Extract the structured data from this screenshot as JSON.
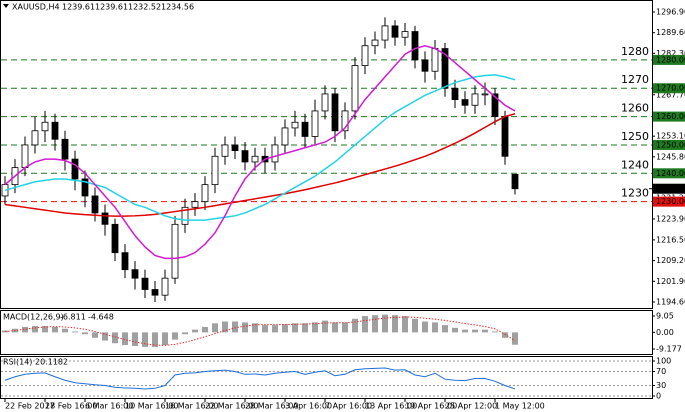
{
  "chart_data": [
    {
      "type": "candlestick",
      "title": "XAUUSD,H4",
      "categories": [
        "22 Feb 2017",
        null,
        null,
        null,
        "28 Feb 16:00",
        null,
        null,
        null,
        "6 Mar 16:00",
        null,
        null,
        null,
        "10 Mar 16:00",
        null,
        null,
        null,
        "16 Mar 16:00",
        null,
        null,
        null,
        "22 Mar 16:00",
        null,
        null,
        null,
        "28 Mar 16:00",
        null,
        null,
        null,
        "3 Apr 16:00",
        null,
        null,
        null,
        "7 Apr 16:00",
        null,
        null,
        null,
        "13 Apr 16:00",
        null,
        null,
        null,
        "19 Apr 16:00",
        null,
        null,
        null,
        "25 Apr 12:00",
        null,
        null,
        null,
        null,
        "1 May 12:00",
        null,
        null
      ],
      "open": [
        1232,
        1236,
        1242,
        1250,
        1255,
        1258,
        1252,
        1245,
        1238,
        1232,
        1226,
        1222,
        1212,
        1206,
        1203,
        1199,
        1197,
        1203,
        1222,
        1228,
        1230,
        1236,
        1246,
        1250,
        1248,
        1244,
        1246,
        1244,
        1250,
        1256,
        1258,
        1253,
        1262,
        1268,
        1255,
        1262,
        1278,
        1285,
        1287,
        1292,
        1288,
        1290,
        1280,
        1276,
        1284,
        1270,
        1266,
        1264,
        1268,
        1268,
        1260,
        1239.61
      ],
      "high": [
        1239,
        1245,
        1253,
        1260,
        1262,
        1261,
        1255,
        1248,
        1241,
        1235,
        1229,
        1224,
        1215,
        1209,
        1206,
        1202,
        1206,
        1225,
        1231,
        1233,
        1239,
        1249,
        1253,
        1253,
        1251,
        1249,
        1249,
        1253,
        1259,
        1262,
        1261,
        1266,
        1271,
        1270,
        1265,
        1281,
        1288,
        1290,
        1295,
        1294,
        1293,
        1292,
        1283,
        1287,
        1286,
        1273,
        1269,
        1271,
        1272,
        1270,
        1262,
        1239.61
      ],
      "low": [
        1229,
        1233,
        1239,
        1247,
        1251,
        1248,
        1241,
        1234,
        1228,
        1223,
        1218,
        1209,
        1203,
        1199,
        1196,
        1194.6,
        1195,
        1201,
        1219,
        1225,
        1227,
        1233,
        1243,
        1245,
        1241,
        1241,
        1240,
        1241,
        1247,
        1253,
        1249,
        1250,
        1259,
        1251,
        1252,
        1259,
        1275,
        1282,
        1284,
        1285,
        1285,
        1277,
        1272,
        1273,
        1267,
        1263,
        1261,
        1261,
        1264,
        1257,
        1243,
        1232.52
      ],
      "close": [
        1236,
        1242,
        1250,
        1255,
        1258,
        1252,
        1245,
        1238,
        1232,
        1226,
        1222,
        1212,
        1206,
        1203,
        1199,
        1197,
        1203,
        1222,
        1228,
        1230,
        1236,
        1246,
        1250,
        1248,
        1244,
        1246,
        1244,
        1250,
        1256,
        1258,
        1253,
        1262,
        1268,
        1255,
        1262,
        1278,
        1285,
        1287,
        1292,
        1288,
        1290,
        1280,
        1276,
        1284,
        1270,
        1266,
        1264,
        1268,
        1268,
        1260,
        1246,
        1234.56
      ],
      "up_color": "#ffffff",
      "down_color": "#000000",
      "series": [
        {
          "color": "#e00000",
          "values": [
            1229,
            1228.5,
            1228,
            1227.5,
            1227,
            1226.5,
            1226,
            1225.7,
            1225.4,
            1225.2,
            1225,
            1224.9,
            1224.9,
            1225,
            1225.2,
            1225.5,
            1226,
            1226.5,
            1227,
            1227.5,
            1228,
            1228.6,
            1229.2,
            1229.8,
            1230.4,
            1231,
            1231.6,
            1232.2,
            1232.8,
            1233.5,
            1234.2,
            1235,
            1235.8,
            1236.6,
            1237.5,
            1238.5,
            1239.5,
            1240.5,
            1241.5,
            1242.5,
            1243.6,
            1244.8,
            1246,
            1247.4,
            1249,
            1250.6,
            1252.3,
            1254.2,
            1256.2,
            1258.2,
            1260,
            1261
          ]
        },
        {
          "color": "#22d3e6",
          "values": [
            1234,
            1235,
            1236,
            1237,
            1237.5,
            1238,
            1238,
            1237.5,
            1237,
            1236,
            1235,
            1233,
            1231,
            1229,
            1228,
            1226.5,
            1225,
            1224,
            1223.5,
            1223.5,
            1223.5,
            1224,
            1224.5,
            1225,
            1226,
            1227.5,
            1229,
            1231,
            1233,
            1235,
            1237,
            1239,
            1241.5,
            1244,
            1247,
            1250,
            1253,
            1256,
            1259,
            1261.5,
            1263.5,
            1265.5,
            1267.5,
            1269,
            1270.5,
            1272,
            1273,
            1274,
            1274.5,
            1274.7,
            1274,
            1273
          ]
        },
        {
          "color": "#d41ad4",
          "values": [
            1236,
            1239,
            1242,
            1244,
            1245,
            1245,
            1244.5,
            1243,
            1240,
            1236,
            1232,
            1228,
            1223,
            1218,
            1214,
            1211,
            1210,
            1210,
            1210.5,
            1212,
            1215,
            1219,
            1225,
            1232,
            1238,
            1242,
            1245,
            1246,
            1247,
            1248,
            1249,
            1250,
            1251,
            1253,
            1256,
            1261,
            1266,
            1270,
            1274,
            1278,
            1282,
            1284,
            1285,
            1284,
            1282,
            1279,
            1276,
            1273,
            1270,
            1267,
            1264,
            1262
          ]
        }
      ],
      "levels": [
        {
          "value": 1280,
          "label": "1280",
          "box_label": "1280.00",
          "color": "#1f7a1f"
        },
        {
          "value": 1270,
          "label": "1270",
          "box_label": "1270.00",
          "color": "#1f7a1f"
        },
        {
          "value": 1260,
          "label": "1260",
          "box_label": "1260.00",
          "color": "#1f7a1f"
        },
        {
          "value": 1250,
          "label": "1250",
          "box_label": "1250.00",
          "color": "#1f7a1f"
        },
        {
          "value": 1240,
          "label": "1240",
          "box_label": "1240.00",
          "color": "#1f7a1f"
        },
        {
          "value": 1230,
          "label": "1230",
          "box_label": "1230.00",
          "color": "#e01010"
        }
      ],
      "last_price": 1234.56,
      "ylim": [
        1192.48,
        1301.13
      ],
      "yticks": [
        {
          "value": 1296.9,
          "label": "1296.90"
        },
        {
          "value": 1289.6,
          "label": "1289.60"
        },
        {
          "value": 1282.3,
          "label": "1282.30"
        },
        {
          "value": 1267.7,
          "label": "1267.70"
        },
        {
          "value": 1253.1,
          "label": "1253.10"
        },
        {
          "value": 1245.8,
          "label": "1245.80"
        },
        {
          "value": 1231.2,
          "label": "1231.20"
        },
        {
          "value": 1223.9,
          "label": "1223.90"
        },
        {
          "value": 1216.5,
          "label": "1216.50"
        },
        {
          "value": 1209.2,
          "label": "1209.20"
        },
        {
          "value": 1201.9,
          "label": "1201.90"
        },
        {
          "value": 1194.6,
          "label": "1194.60"
        }
      ]
    },
    {
      "type": "macd",
      "title": "MACD(12,26,9)",
      "histogram": [
        1,
        2,
        3,
        3.5,
        3.5,
        3,
        2,
        0.5,
        -1,
        -3,
        -4.5,
        -6,
        -7,
        -7.5,
        -8,
        -8,
        -7,
        -4,
        -1,
        1.5,
        3,
        5,
        6,
        6,
        5.5,
        5,
        4,
        4,
        4.5,
        5,
        5,
        5.5,
        6.5,
        5.5,
        5.5,
        7.5,
        9,
        9.5,
        9.8,
        9.5,
        9,
        7.5,
        6,
        5.5,
        4,
        2.5,
        1.5,
        1.5,
        1.5,
        0.5,
        -3,
        -6.811
      ],
      "hist_color": "#a0a0a0",
      "signal": [
        0.5,
        1,
        1.8,
        2.5,
        3,
        3.2,
        3,
        2.5,
        1.7,
        0.5,
        -1,
        -2.5,
        -4,
        -5.3,
        -6.3,
        -7,
        -7.2,
        -6.6,
        -5.5,
        -4,
        -2.4,
        -0.7,
        1,
        2.5,
        3.5,
        4.2,
        4.3,
        4.3,
        4.3,
        4.5,
        4.6,
        4.8,
        5.2,
        5.3,
        5.3,
        5.8,
        6.5,
        7.2,
        7.9,
        8.3,
        8.5,
        8.3,
        7.8,
        7.3,
        6.6,
        5.8,
        4.9,
        4.1,
        3.2,
        2,
        -1,
        -4.648
      ],
      "signal_color": "#e03030",
      "ylim": [
        -11.94,
        11.81
      ],
      "yticks": [
        9.05,
        {
          "value": 0,
          "label": "0.00"
        },
        -9.177
      ]
    },
    {
      "type": "rsi",
      "title": "RSI(14)",
      "values": [
        45,
        55,
        62,
        65,
        66,
        55,
        45,
        38,
        35,
        32,
        30,
        25,
        23,
        22,
        20,
        22,
        30,
        60,
        65,
        66,
        70,
        72,
        74,
        70,
        62,
        63,
        60,
        65,
        68,
        70,
        62,
        68,
        72,
        58,
        62,
        75,
        78,
        79,
        80,
        74,
        75,
        60,
        55,
        65,
        48,
        45,
        44,
        50,
        50,
        42,
        30,
        20.1182
      ],
      "color": "#1e6fd9",
      "ylim": [
        0,
        100
      ],
      "yticks": [
        100,
        70,
        30,
        0
      ]
    }
  ]
}
